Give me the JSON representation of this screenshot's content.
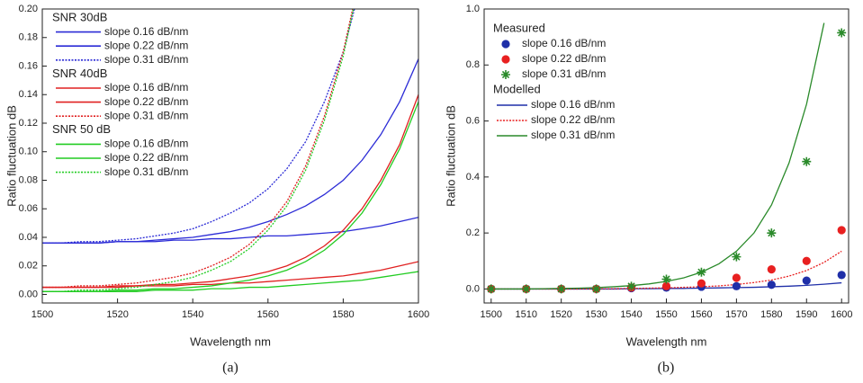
{
  "chart_data": [
    {
      "type": "line",
      "caption": "(a)",
      "xlabel": "Wavelength nm",
      "ylabel": "Ratio fluctuation dB",
      "xlim": [
        1500,
        1600
      ],
      "ylim": [
        -0.006,
        0.2
      ],
      "xticks": [
        1500,
        1520,
        1540,
        1560,
        1580,
        1600
      ],
      "yticks": [
        {
          "value": 0,
          "label": "0.00"
        },
        {
          "value": 0.02,
          "label": "0.02"
        },
        {
          "value": 0.04,
          "label": "0.04"
        },
        {
          "value": 0.06,
          "label": "0.06"
        },
        {
          "value": 0.08,
          "label": "0.08"
        },
        {
          "value": 0.1,
          "label": "0.10"
        },
        {
          "value": 0.12,
          "label": "0.12"
        },
        {
          "value": 0.14,
          "label": "0.14"
        },
        {
          "value": 0.16,
          "label": "0.16"
        },
        {
          "value": 0.18,
          "label": "0.18"
        },
        {
          "value": 0.2,
          "label": "0.20"
        }
      ],
      "groups": [
        {
          "title": "SNR 30dB",
          "x": [
            1500,
            1505,
            1510,
            1515,
            1520,
            1525,
            1530,
            1535,
            1540,
            1545,
            1550,
            1555,
            1560,
            1565,
            1570,
            1575,
            1580,
            1585,
            1590,
            1595,
            1600
          ],
          "series": [
            {
              "name": "slope 0.16 dB/nm",
              "type": "line",
              "color": "#2b2bd6",
              "dash": "solid",
              "values": [
                0.036,
                0.036,
                0.036,
                0.036,
                0.037,
                0.037,
                0.037,
                0.038,
                0.038,
                0.039,
                0.039,
                0.04,
                0.041,
                0.041,
                0.042,
                0.043,
                0.044,
                0.046,
                0.048,
                0.051,
                0.054
              ]
            },
            {
              "name": "slope 0.22 dB/nm",
              "type": "line",
              "color": "#2b2bd6",
              "dash": "solid",
              "values": [
                0.036,
                0.036,
                0.036,
                0.036,
                0.037,
                0.037,
                0.038,
                0.039,
                0.04,
                0.042,
                0.044,
                0.047,
                0.051,
                0.056,
                0.062,
                0.07,
                0.08,
                0.094,
                0.112,
                0.135,
                0.165
              ]
            },
            {
              "name": "slope 0.31 dB/nm",
              "type": "line",
              "color": "#2b2bd6",
              "dash": "dotted",
              "values": [
                0.036,
                0.036,
                0.037,
                0.037,
                0.038,
                0.039,
                0.041,
                0.043,
                0.046,
                0.051,
                0.057,
                0.064,
                0.074,
                0.088,
                0.107,
                0.135,
                0.17,
                0.22,
                null,
                null,
                null
              ]
            }
          ]
        },
        {
          "title": "SNR 40dB",
          "x": [
            1500,
            1505,
            1510,
            1515,
            1520,
            1525,
            1530,
            1535,
            1540,
            1545,
            1550,
            1555,
            1560,
            1565,
            1570,
            1575,
            1580,
            1585,
            1590,
            1595,
            1600
          ],
          "series": [
            {
              "name": "slope 0.16 dB/nm",
              "type": "line",
              "color": "#e02020",
              "dash": "solid",
              "values": [
                0.005,
                0.005,
                0.005,
                0.005,
                0.005,
                0.006,
                0.006,
                0.006,
                0.007,
                0.007,
                0.008,
                0.008,
                0.009,
                0.01,
                0.011,
                0.012,
                0.013,
                0.015,
                0.017,
                0.02,
                0.023
              ]
            },
            {
              "name": "slope 0.22 dB/nm",
              "type": "line",
              "color": "#e02020",
              "dash": "solid",
              "values": [
                0.005,
                0.005,
                0.005,
                0.005,
                0.006,
                0.006,
                0.007,
                0.007,
                0.008,
                0.009,
                0.011,
                0.013,
                0.016,
                0.02,
                0.026,
                0.034,
                0.045,
                0.06,
                0.08,
                0.105,
                0.14
              ]
            },
            {
              "name": "slope 0.31 dB/nm",
              "type": "line",
              "color": "#e02020",
              "dash": "dotted",
              "values": [
                0.005,
                0.005,
                0.006,
                0.006,
                0.007,
                0.008,
                0.01,
                0.012,
                0.015,
                0.02,
                0.026,
                0.035,
                0.048,
                0.065,
                0.09,
                0.125,
                0.17,
                0.23,
                null,
                null,
                null
              ]
            }
          ]
        },
        {
          "title": "SNR 50 dB",
          "x": [
            1500,
            1505,
            1510,
            1515,
            1520,
            1525,
            1530,
            1535,
            1540,
            1545,
            1550,
            1555,
            1560,
            1565,
            1570,
            1575,
            1580,
            1585,
            1590,
            1595,
            1600
          ],
          "series": [
            {
              "name": "slope 0.16 dB/nm",
              "type": "line",
              "color": "#22cc22",
              "dash": "solid",
              "values": [
                0.002,
                0.002,
                0.002,
                0.002,
                0.002,
                0.002,
                0.003,
                0.003,
                0.003,
                0.004,
                0.004,
                0.005,
                0.005,
                0.006,
                0.007,
                0.008,
                0.009,
                0.01,
                0.012,
                0.014,
                0.016
              ]
            },
            {
              "name": "slope 0.22 dB/nm",
              "type": "line",
              "color": "#22cc22",
              "dash": "solid",
              "values": [
                0.002,
                0.002,
                0.002,
                0.002,
                0.003,
                0.003,
                0.004,
                0.004,
                0.005,
                0.006,
                0.008,
                0.01,
                0.013,
                0.017,
                0.023,
                0.031,
                0.042,
                0.057,
                0.077,
                0.102,
                0.135
              ]
            },
            {
              "name": "slope 0.31 dB/nm",
              "type": "line",
              "color": "#22cc22",
              "dash": "dotted",
              "values": [
                0.002,
                0.002,
                0.003,
                0.003,
                0.004,
                0.005,
                0.007,
                0.009,
                0.012,
                0.017,
                0.023,
                0.032,
                0.045,
                0.062,
                0.087,
                0.122,
                0.167,
                0.228,
                null,
                null,
                null
              ]
            }
          ]
        }
      ]
    },
    {
      "type": "scatter",
      "caption": "(b)",
      "xlabel": "Wavelength nm",
      "ylabel": "Ratio fluctuation dB",
      "xlim": [
        1498,
        1602
      ],
      "ylim": [
        -0.05,
        1.0
      ],
      "xticks": [
        1500,
        1510,
        1520,
        1530,
        1540,
        1550,
        1560,
        1570,
        1580,
        1590,
        1600
      ],
      "yticks": [
        {
          "value": 0,
          "label": "0.0"
        },
        0.2,
        0.4,
        0.6,
        0.8,
        {
          "value": 1,
          "label": "1.0"
        }
      ],
      "groups": [
        {
          "title": "Measured",
          "x": [
            1500,
            1510,
            1520,
            1530,
            1540,
            1550,
            1560,
            1570,
            1580,
            1590,
            1600
          ],
          "series": [
            {
              "name": "slope 0.16 dB/nm",
              "type": "scatter",
              "marker": "circle",
              "color": "#1f2fa8",
              "values": [
                0,
                0,
                0,
                0,
                0.003,
                0.005,
                0.008,
                0.01,
                0.015,
                0.03,
                0.05
              ]
            },
            {
              "name": "slope 0.22 dB/nm",
              "type": "scatter",
              "marker": "circle",
              "color": "#e82020",
              "values": [
                0,
                0,
                0,
                0,
                0.005,
                0.01,
                0.02,
                0.04,
                0.07,
                0.1,
                0.21
              ]
            },
            {
              "name": "slope 0.31 dB/nm",
              "type": "scatter",
              "marker": "star",
              "color": "#2a8a2a",
              "values": [
                0,
                0,
                0,
                0,
                0.01,
                0.035,
                0.06,
                0.115,
                0.2,
                0.455,
                0.915
              ]
            }
          ]
        },
        {
          "title": "Modelled",
          "x": [
            1500,
            1505,
            1510,
            1515,
            1520,
            1525,
            1530,
            1535,
            1540,
            1545,
            1550,
            1555,
            1560,
            1565,
            1570,
            1575,
            1580,
            1585,
            1590,
            1595,
            1600
          ],
          "series": [
            {
              "name": "slope 0.16 dB/nm",
              "type": "line",
              "color": "#1f2fa8",
              "dash": "solid",
              "values": [
                0,
                0,
                0,
                0,
                0,
                0,
                0,
                0,
                0.001,
                0.001,
                0.002,
                0.002,
                0.003,
                0.004,
                0.005,
                0.006,
                0.008,
                0.01,
                0.013,
                0.017,
                0.022
              ]
            },
            {
              "name": "slope 0.22 dB/nm",
              "type": "line",
              "color": "#e82020",
              "dash": "dotted",
              "values": [
                0,
                0,
                0,
                0,
                0,
                0,
                0.001,
                0.001,
                0.002,
                0.003,
                0.004,
                0.006,
                0.008,
                0.011,
                0.016,
                0.023,
                0.032,
                0.046,
                0.066,
                0.095,
                0.135
              ]
            },
            {
              "name": "slope 0.31 dB/nm",
              "type": "line",
              "color": "#2a8a2a",
              "dash": "solid",
              "values": [
                0,
                0,
                0,
                0.001,
                0.002,
                0.003,
                0.005,
                0.008,
                0.012,
                0.018,
                0.027,
                0.04,
                0.06,
                0.09,
                0.135,
                0.2,
                0.3,
                0.45,
                0.66,
                0.95,
                null
              ]
            }
          ]
        }
      ]
    }
  ]
}
